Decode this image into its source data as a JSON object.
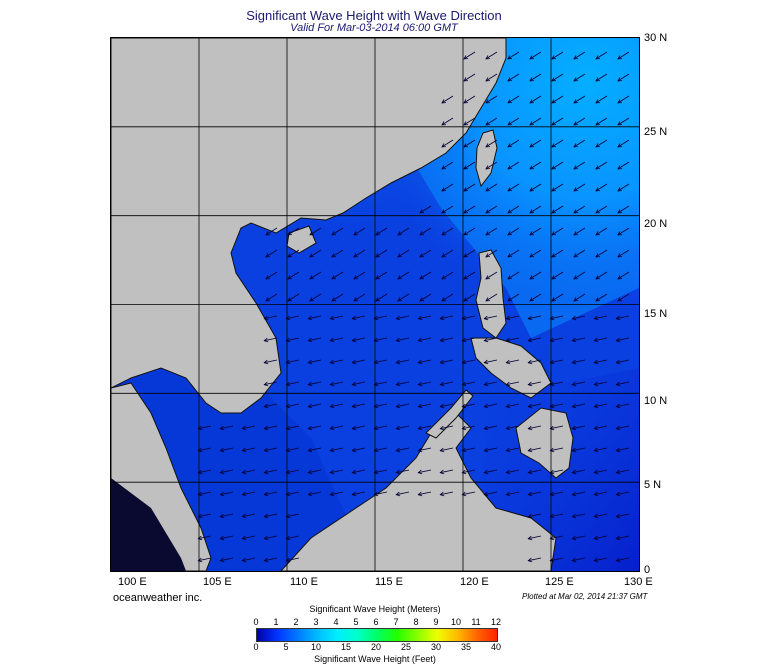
{
  "header": {
    "title": "Significant Wave Height with Wave Direction",
    "subtitle": "Valid For Mar-03-2014 06:00 GMT"
  },
  "map": {
    "lon_range": [
      100,
      130
    ],
    "lat_range": [
      0,
      30
    ],
    "x_ticks": [
      "100 E",
      "105 E",
      "110 E",
      "115 E",
      "120 E",
      "125 E",
      "130 E"
    ],
    "y_ticks": [
      "30 N",
      "25 N",
      "20 N",
      "15 N",
      "10 N",
      "5 N",
      "0"
    ],
    "gridlines": true,
    "land_color": "#c0c0c0",
    "dominant_wave_direction": "from northeast toward southwest"
  },
  "footer": {
    "brand": "oceanweather inc.",
    "plotted": "Plotted at Mar 02, 2014 21:37 GMT"
  },
  "colorbar": {
    "title_meters": "Significant Wave Height (Meters)",
    "title_feet": "Significant Wave Height (Feet)",
    "meters_labels": [
      "0",
      "1",
      "2",
      "3",
      "4",
      "5",
      "6",
      "7",
      "8",
      "9",
      "10",
      "11",
      "12"
    ],
    "feet_labels": [
      "0",
      "5",
      "10",
      "15",
      "20",
      "25",
      "30",
      "35",
      "40"
    ],
    "colors": [
      "#0000aa",
      "#0033ff",
      "#0077ff",
      "#00bbff",
      "#00eeff",
      "#00ffcc",
      "#00ff66",
      "#22ff00",
      "#88ff00",
      "#eeff00",
      "#ffbb00",
      "#ff6600",
      "#ff2200"
    ]
  }
}
